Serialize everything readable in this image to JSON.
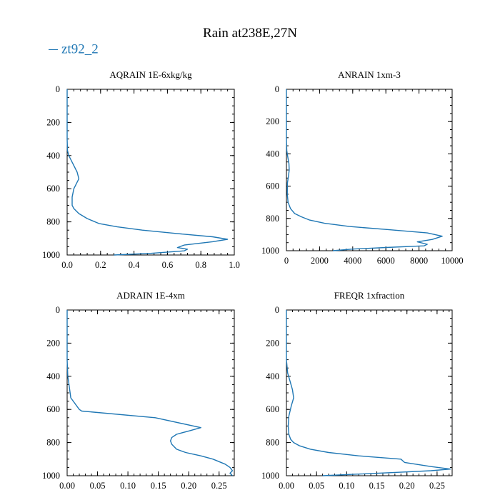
{
  "title": "Rain at238E,27N",
  "legend": {
    "label": "zt92_2",
    "color": "#1f77b4"
  },
  "chart_data": [
    {
      "type": "line",
      "title": "AQRAIN  1E-6xkg/kg",
      "xlim": [
        0,
        1.0
      ],
      "ylim": [
        1000,
        0
      ],
      "xticks": [
        "0.0",
        "0.2",
        "0.4",
        "0.6",
        "0.8",
        "1.0"
      ],
      "xtick_values": [
        0,
        0.2,
        0.4,
        0.6,
        0.8,
        1.0
      ],
      "yticks": [
        "0",
        "200",
        "400",
        "600",
        "800",
        "1000"
      ],
      "ytick_values": [
        0,
        200,
        400,
        600,
        800,
        1000
      ],
      "series": [
        {
          "color": "#1f77b4",
          "x": [
            0,
            0,
            0.002,
            0.01,
            0.035,
            0.06,
            0.07,
            0.055,
            0.04,
            0.03,
            0.03,
            0.04,
            0.07,
            0.12,
            0.19,
            0.3,
            0.45,
            0.65,
            0.87,
            0.96,
            0.87,
            0.7,
            0.66,
            0.72,
            0.7,
            0.5,
            0.28
          ],
          "y": [
            0,
            300,
            370,
            400,
            450,
            500,
            540,
            570,
            600,
            650,
            700,
            720,
            750,
            780,
            810,
            830,
            850,
            870,
            890,
            905,
            920,
            940,
            955,
            965,
            975,
            990,
            1000
          ]
        }
      ]
    },
    {
      "type": "line",
      "title": "ANRAIN  1xm-3",
      "xlim": [
        0,
        10000
      ],
      "ylim": [
        1000,
        0
      ],
      "xticks": [
        "0",
        "2000",
        "4000",
        "6000",
        "8000",
        "10000"
      ],
      "xtick_values": [
        0,
        2000,
        4000,
        6000,
        8000,
        10000
      ],
      "yticks": [
        "0",
        "200",
        "400",
        "600",
        "800",
        "1000"
      ],
      "ytick_values": [
        0,
        200,
        400,
        600,
        800,
        1000
      ],
      "series": [
        {
          "color": "#1f77b4",
          "x": [
            0,
            0,
            20,
            80,
            150,
            170,
            120,
            60,
            50,
            100,
            250,
            500,
            900,
            1400,
            2300,
            3800,
            6200,
            8500,
            9400,
            8800,
            7900,
            8500,
            8300,
            6000,
            4000,
            2800
          ],
          "y": [
            0,
            300,
            380,
            420,
            460,
            500,
            540,
            580,
            650,
            700,
            740,
            770,
            790,
            810,
            830,
            850,
            870,
            890,
            910,
            930,
            945,
            960,
            970,
            980,
            990,
            1000
          ]
        }
      ]
    },
    {
      "type": "line",
      "title": "ADRAIN  1E-4xm",
      "xlim": [
        0,
        0.275
      ],
      "ylim": [
        1000,
        0
      ],
      "xticks": [
        "0.00",
        "0.05",
        "0.10",
        "0.15",
        "0.20",
        "0.25"
      ],
      "xtick_values": [
        0,
        0.05,
        0.1,
        0.15,
        0.2,
        0.25
      ],
      "yticks": [
        "0",
        "200",
        "400",
        "600",
        "800",
        "1000"
      ],
      "ytick_values": [
        0,
        200,
        400,
        600,
        800,
        1000
      ],
      "series": [
        {
          "color": "#1f77b4",
          "x": [
            0,
            0,
            0.001,
            0.003,
            0.006,
            0.02,
            0.024,
            0.145,
            0.22,
            0.2,
            0.18,
            0.172,
            0.17,
            0.172,
            0.18,
            0.195,
            0.22,
            0.24,
            0.26,
            0.268,
            0.272,
            0.268,
            0.272
          ],
          "y": [
            0,
            300,
            400,
            450,
            530,
            600,
            610,
            650,
            710,
            730,
            750,
            770,
            790,
            810,
            840,
            860,
            880,
            900,
            930,
            950,
            970,
            985,
            1000
          ]
        }
      ]
    },
    {
      "type": "line",
      "title": "FREQR  1xfraction",
      "xlim": [
        0,
        0.275
      ],
      "ylim": [
        1000,
        0
      ],
      "xticks": [
        "0.00",
        "0.05",
        "0.10",
        "0.15",
        "0.20",
        "0.25"
      ],
      "xtick_values": [
        0,
        0.05,
        0.1,
        0.15,
        0.2,
        0.25
      ],
      "yticks": [
        "0",
        "200",
        "400",
        "600",
        "800",
        "1000"
      ],
      "ytick_values": [
        0,
        200,
        400,
        600,
        800,
        1000
      ],
      "series": [
        {
          "color": "#1f77b4",
          "x": [
            0,
            0,
            0.002,
            0.006,
            0.01,
            0.012,
            0.008,
            0.004,
            0.003,
            0.004,
            0.007,
            0.012,
            0.022,
            0.04,
            0.07,
            0.12,
            0.19,
            0.196,
            0.24,
            0.272,
            0.24,
            0.18,
            0.12,
            0.06
          ],
          "y": [
            0,
            300,
            380,
            430,
            480,
            530,
            580,
            640,
            700,
            750,
            780,
            800,
            820,
            840,
            860,
            880,
            900,
            920,
            945,
            960,
            970,
            980,
            990,
            1000
          ]
        }
      ]
    }
  ]
}
